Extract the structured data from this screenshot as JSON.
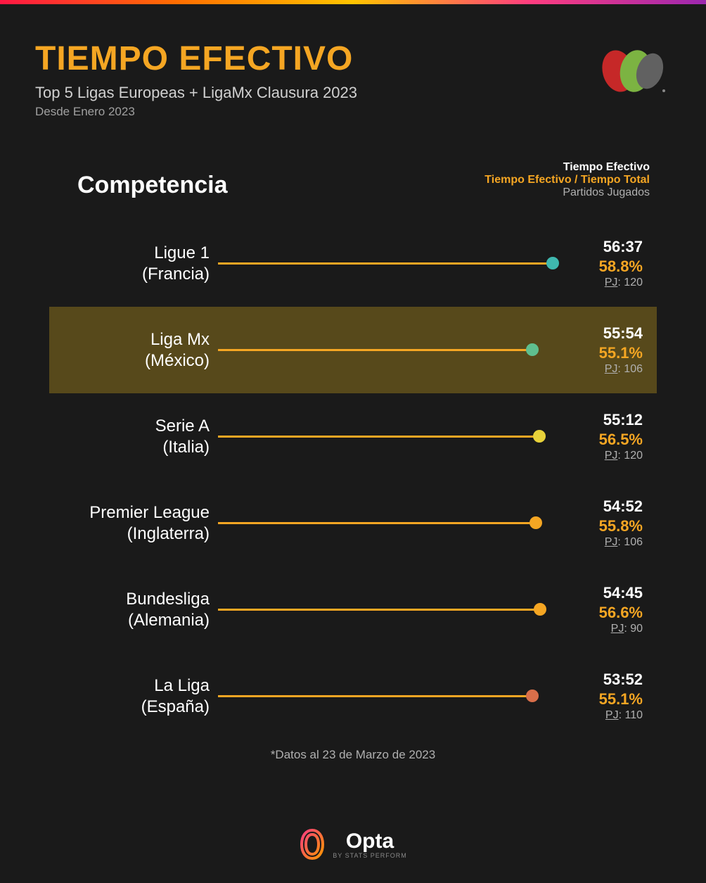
{
  "colors": {
    "accent": "#f5a623",
    "bar_line": "#f5a623",
    "text_white": "#ffffff",
    "text_muted": "#b0b0b0",
    "highlight_bg": "rgba(139,113,30,0.55)"
  },
  "header": {
    "title": "TIEMPO EFECTIVO",
    "subtitle": "Top 5 Ligas Europeas + LigaMx Clausura 2023",
    "date_range": "Desde Enero 2023"
  },
  "section": {
    "title": "Competencia",
    "legend_line1": "Tiempo Efectivo",
    "legend_line2": "Tiempo Efectivo / Tiempo Total",
    "legend_line3": "Partidos Jugados"
  },
  "chart": {
    "bar_max_pct": 100,
    "bar_color": "#f5a623",
    "rows": [
      {
        "league": "Ligue 1",
        "country": "(Francia)",
        "time": "56:37",
        "pct": "58.8%",
        "pj_label": "PJ",
        "pj": "120",
        "bar_pct": 98,
        "dot_color": "#3fb8af",
        "highlight": false
      },
      {
        "league": "Liga Mx",
        "country": "(México)",
        "time": "55:54",
        "pct": "55.1%",
        "pj_label": "PJ",
        "pj": "106",
        "bar_pct": 92,
        "dot_color": "#5fbf8f",
        "highlight": true
      },
      {
        "league": "Serie A",
        "country": "(Italia)",
        "time": "55:12",
        "pct": "56.5%",
        "pj_label": "PJ",
        "pj": "120",
        "bar_pct": 94,
        "dot_color": "#e8d23a",
        "highlight": false
      },
      {
        "league": "Premier League",
        "country": "(Inglaterra)",
        "time": "54:52",
        "pct": "55.8%",
        "pj_label": "PJ",
        "pj": "106",
        "bar_pct": 93,
        "dot_color": "#f5a623",
        "highlight": false
      },
      {
        "league": "Bundesliga",
        "country": "(Alemania)",
        "time": "54:45",
        "pct": "56.6%",
        "pj_label": "PJ",
        "pj": "90",
        "bar_pct": 94.2,
        "dot_color": "#f5a623",
        "highlight": false
      },
      {
        "league": "La Liga",
        "country": "(España)",
        "time": "53:52",
        "pct": "55.1%",
        "pj_label": "PJ",
        "pj": "110",
        "bar_pct": 92,
        "dot_color": "#d96f4a",
        "highlight": false
      }
    ]
  },
  "footnote": "*Datos al 23 de Marzo de 2023",
  "footer": {
    "brand": "Opta",
    "sub": "BY STATS PERFORM"
  }
}
